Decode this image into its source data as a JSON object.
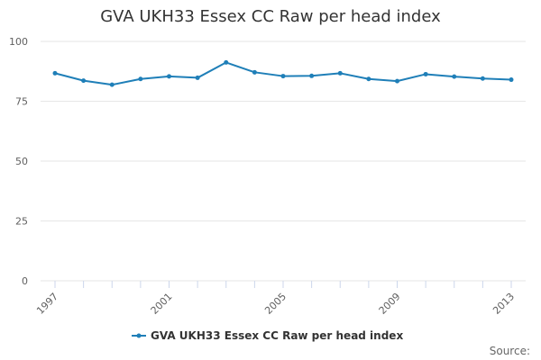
{
  "chart_data": {
    "type": "line",
    "title": "GVA UKH33 Essex CC Raw per head index",
    "xlabel": "",
    "ylabel": "",
    "x": [
      1997,
      1998,
      1999,
      2000,
      2001,
      2002,
      2003,
      2004,
      2005,
      2006,
      2007,
      2008,
      2009,
      2010,
      2011,
      2012,
      2013
    ],
    "series": [
      {
        "name": "GVA UKH33 Essex CC Raw per head index",
        "color": "#1f7fb8",
        "values": [
          86.7,
          83.6,
          81.9,
          84.3,
          85.4,
          84.8,
          91.2,
          87.1,
          85.5,
          85.6,
          86.7,
          84.3,
          83.4,
          86.3,
          85.3,
          84.5,
          84.0
        ]
      }
    ],
    "ylim": [
      0,
      100
    ],
    "yticks": [
      0,
      25,
      50,
      75,
      100
    ],
    "xticks": [
      1997,
      2001,
      2005,
      2009,
      2013
    ],
    "xtick_rotation": -45,
    "grid": true,
    "legend_position": "bottom-center",
    "credit": "Source:"
  }
}
